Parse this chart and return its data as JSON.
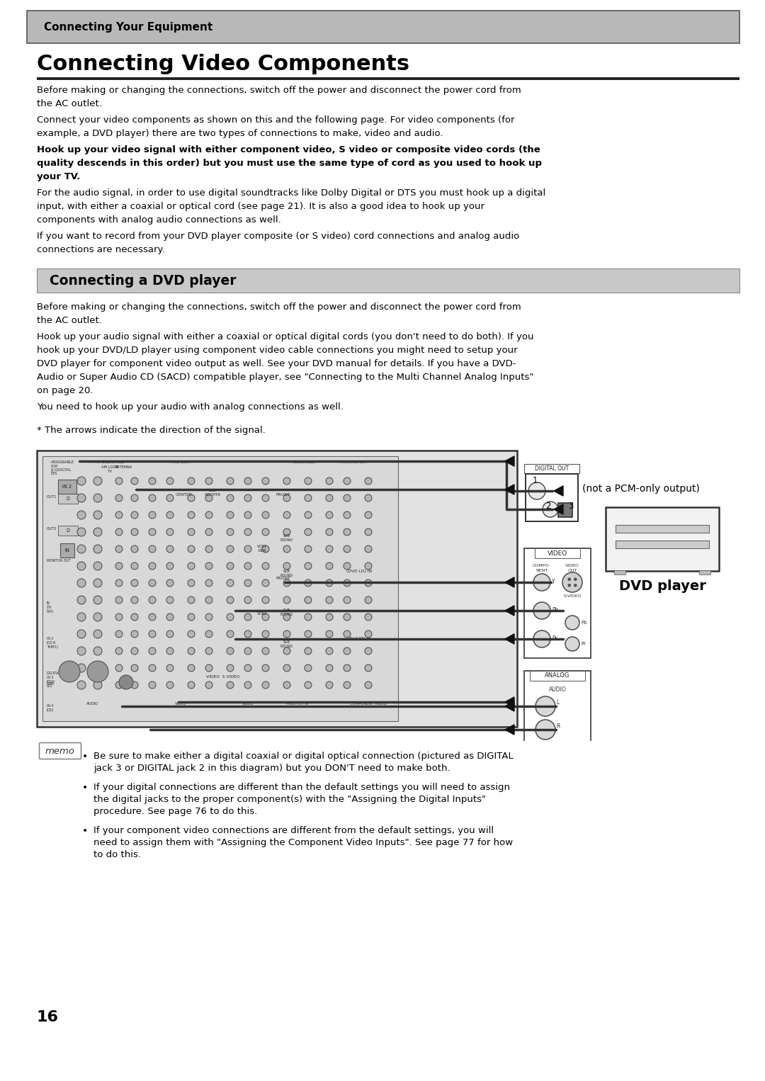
{
  "page_number": "16",
  "header_text": "Connecting Your Equipment",
  "main_title": "Connecting Video Components",
  "section_title": "Connecting a DVD player",
  "body_text_1a": "Before making or changing the connections, switch off the power and disconnect the power cord from",
  "body_text_1b": "the AC outlet.",
  "body_text_2a": "Connect your video components as shown on this and the following page. For video components (for",
  "body_text_2b": "example, a DVD player) there are two types of connections to make, video and audio.",
  "body_text_bold_a": "Hook up your video signal with either component video, S video or composite video cords (the",
  "body_text_bold_b": "quality descends in this order) but you must use the same type of cord as you used to hook up",
  "body_text_bold_c": "your TV.",
  "body_text_3a": "For the audio signal, in order to use digital soundtracks like Dolby Digital or DTS you must hook up a digital",
  "body_text_3b": "input, with either a coaxial or optical cord (see page 21). It is also a good idea to hook up your",
  "body_text_3c": "components with analog audio connections as well.",
  "body_text_4a": "If you want to record from your DVD player composite (or S video) cord connections and analog audio",
  "body_text_4b": "connections are necessary.",
  "sec2_text1a": "Before making or changing the connections, switch off the power and disconnect the power cord from",
  "sec2_text1b": "the AC outlet.",
  "sec2_text2a": "Hook up your audio signal with either a coaxial or optical digital cords (you don't need to do both). If you",
  "sec2_text2b": "hook up your DVD/LD player using component video cable connections you might need to setup your",
  "sec2_text2c": "DVD player for component video output as well. See your DVD manual for details. If you have a DVD-",
  "sec2_text2d": "Audio or Super Audio CD (SACD) compatible player, see \"Connecting to the Multi Channel Analog Inputs\"",
  "sec2_text2e": "on page 20.",
  "sec2_text3": "You need to hook up your audio with analog connections as well.",
  "arrows_note": "* The arrows indicate the direction of the signal.",
  "not_pcm_label": "(not a PCM-only output)",
  "dvd_player_label": "DVD player",
  "memo_b1a": "Be sure to make either a digital coaxial or digital optical connection (pictured as DIGITAL",
  "memo_b1b": "jack 3 or DIGITAL jack 2 in this diagram) but you DON'T need to make both.",
  "memo_b2a": "If your digital connections are different than the default settings you will need to assign",
  "memo_b2b": "the digital jacks to the proper component(s) with the \"Assigning the Digital Inputs\"",
  "memo_b2c": "procedure. See page 76 to do this.",
  "memo_b3a": "If your component video connections are different from the default settings, you will",
  "memo_b3b": "need to assign them with \"Assigning the Component Video Inputs\". See page 77 for how",
  "memo_b3c": "to do this."
}
